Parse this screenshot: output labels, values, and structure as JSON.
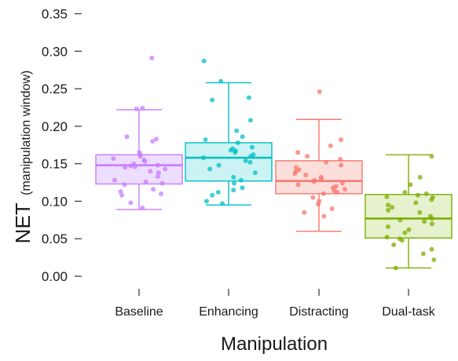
{
  "chart_data": {
    "type": "boxplot",
    "xlabel": "Manipulation",
    "ylabel_main": "NET",
    "ylabel_sub": "(manipulation window)",
    "ylim": [
      0.0,
      0.35
    ],
    "yticks": [
      "0.00",
      "0.05",
      "0.10",
      "0.15",
      "0.20",
      "0.25",
      "0.30",
      "0.35"
    ],
    "ytick_values": [
      0.0,
      0.05,
      0.1,
      0.15,
      0.2,
      0.25,
      0.3,
      0.35
    ],
    "categories": [
      "Baseline",
      "Enhancing",
      "Distracting",
      "Dual-task"
    ],
    "grid": false,
    "legend": "none",
    "series": [
      {
        "category": "Baseline",
        "color": "#c77cff",
        "fill": "#ead7ff",
        "whisker_low": 0.089,
        "q1": 0.123,
        "median": 0.148,
        "q3": 0.162,
        "whisker_high": 0.222,
        "points": [
          0.291,
          0.224,
          0.223,
          0.186,
          0.183,
          0.18,
          0.165,
          0.162,
          0.16,
          0.157,
          0.155,
          0.153,
          0.15,
          0.148,
          0.147,
          0.146,
          0.145,
          0.143,
          0.14,
          0.138,
          0.133,
          0.128,
          0.126,
          0.124,
          0.122,
          0.116,
          0.113,
          0.11,
          0.108,
          0.098,
          0.091
        ]
      },
      {
        "category": "Enhancing",
        "color": "#00bfc4",
        "fill": "#c3f1f2",
        "whisker_low": 0.095,
        "q1": 0.127,
        "median": 0.158,
        "q3": 0.178,
        "whisker_high": 0.258,
        "points": [
          0.287,
          0.26,
          0.238,
          0.235,
          0.208,
          0.194,
          0.186,
          0.182,
          0.178,
          0.172,
          0.17,
          0.168,
          0.167,
          0.165,
          0.162,
          0.16,
          0.158,
          0.154,
          0.152,
          0.148,
          0.143,
          0.138,
          0.132,
          0.128,
          0.124,
          0.118,
          0.115,
          0.112,
          0.108,
          0.1,
          0.097
        ]
      },
      {
        "category": "Distracting",
        "color": "#f8766d",
        "fill": "#fcd9d5",
        "whisker_low": 0.06,
        "q1": 0.11,
        "median": 0.127,
        "q3": 0.154,
        "whisker_high": 0.209,
        "points": [
          0.246,
          0.182,
          0.174,
          0.165,
          0.16,
          0.156,
          0.152,
          0.148,
          0.145,
          0.142,
          0.14,
          0.137,
          0.135,
          0.132,
          0.13,
          0.128,
          0.126,
          0.124,
          0.122,
          0.12,
          0.118,
          0.116,
          0.114,
          0.112,
          0.11,
          0.105,
          0.1,
          0.096,
          0.09,
          0.085,
          0.08
        ]
      },
      {
        "category": "Dual-task",
        "color": "#7cae00",
        "fill": "#e2efc4",
        "whisker_low": 0.011,
        "q1": 0.051,
        "median": 0.077,
        "q3": 0.109,
        "whisker_high": 0.162,
        "points": [
          0.16,
          0.132,
          0.122,
          0.112,
          0.11,
          0.108,
          0.106,
          0.105,
          0.102,
          0.098,
          0.095,
          0.092,
          0.088,
          0.085,
          0.08,
          0.077,
          0.075,
          0.073,
          0.07,
          0.066,
          0.062,
          0.058,
          0.052,
          0.05,
          0.048,
          0.042,
          0.036,
          0.03,
          0.022,
          0.011
        ]
      }
    ]
  }
}
